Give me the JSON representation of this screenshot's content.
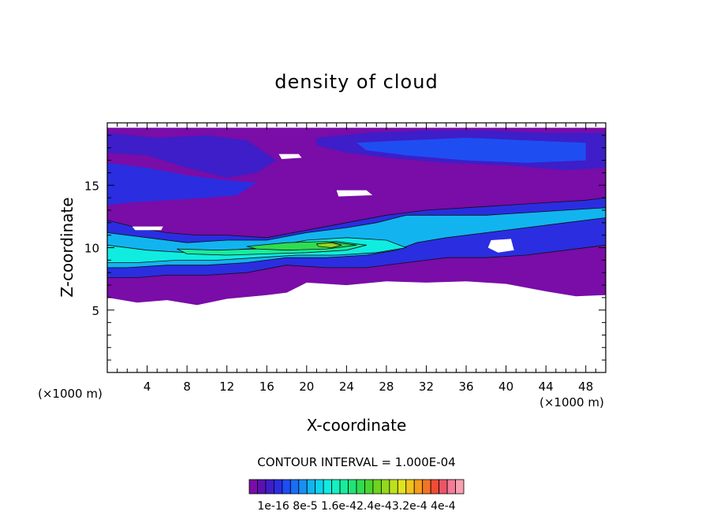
{
  "chart_data": {
    "type": "heatmap",
    "title": "density of cloud",
    "xlabel": "X-coordinate",
    "ylabel": "Z-coordinate",
    "x_unit_left": "(×1000 m)",
    "x_unit_right": "(×1000 m)",
    "xlim": [
      0,
      50
    ],
    "ylim": [
      0,
      20
    ],
    "x_ticks": [
      4,
      8,
      12,
      16,
      20,
      24,
      28,
      32,
      36,
      40,
      44,
      48
    ],
    "y_ticks": [
      5,
      10,
      15
    ],
    "contour_interval_text": "CONTOUR INTERVAL = 1.000E-04",
    "colorbar_labels": [
      "1e-16",
      "8e-5",
      "1.6e-4",
      "2.4e-4",
      "3.2e-4",
      "4e-4"
    ],
    "colorbar_label_text": "1e-16 8e-5 1.6e-42.4e-43.2e-4 4e-4",
    "value_range": [
      1e-16,
      0.0004
    ],
    "colormap": [
      "#7a0ca8",
      "#5a10b4",
      "#3d1ec8",
      "#2a2ee0",
      "#1e4ef2",
      "#1a6ef6",
      "#1790f4",
      "#12b4f0",
      "#0cd4ec",
      "#10ece0",
      "#14f0c0",
      "#18ec9c",
      "#20e478",
      "#30dc50",
      "#4ad430",
      "#6cd41c",
      "#94d81c",
      "#bce21c",
      "#e0e41c",
      "#f0c41c",
      "#f49c1c",
      "#f47424",
      "#f04c34",
      "#ec5468",
      "#f47c98",
      "#f8a0b0"
    ],
    "bands": [
      {
        "level": 0,
        "top": [
          [
            0,
            19.6
          ],
          [
            4,
            19.6
          ],
          [
            8,
            19.6
          ],
          [
            14,
            19.6
          ],
          [
            20,
            19.6
          ],
          [
            26,
            19.6
          ],
          [
            32,
            19.6
          ],
          [
            38,
            19.6
          ],
          [
            44,
            19.6
          ],
          [
            50,
            19.6
          ]
        ],
        "bottom": [
          [
            0,
            6
          ],
          [
            3,
            5.6
          ],
          [
            6,
            5.8
          ],
          [
            9,
            5.4
          ],
          [
            12,
            5.9
          ],
          [
            16,
            6.2
          ],
          [
            18,
            6.4
          ],
          [
            20,
            7.2
          ],
          [
            24,
            7
          ],
          [
            28,
            7.3
          ],
          [
            32,
            7.2
          ],
          [
            36,
            7.3
          ],
          [
            40,
            7.1
          ],
          [
            44,
            6.5
          ],
          [
            47,
            6.1
          ],
          [
            50,
            6.2
          ]
        ]
      },
      {
        "level": 2,
        "top": [
          [
            0,
            19.2
          ],
          [
            5,
            18.8
          ],
          [
            10,
            19
          ],
          [
            14,
            18.6
          ],
          [
            17,
            17
          ],
          [
            15,
            16
          ],
          [
            12,
            15.6
          ],
          [
            8,
            16.4
          ],
          [
            4,
            17.4
          ],
          [
            0,
            17.6
          ]
        ],
        "bottom": []
      },
      {
        "level": 3,
        "top": [
          [
            0,
            16.8
          ],
          [
            4,
            16.4
          ],
          [
            8,
            15.8
          ],
          [
            12,
            15.4
          ],
          [
            15,
            15.2
          ],
          [
            13,
            14.2
          ],
          [
            10,
            14
          ],
          [
            6,
            13.8
          ],
          [
            2,
            13.6
          ],
          [
            0,
            13.4
          ]
        ],
        "bottom": []
      },
      {
        "level": 2,
        "top": [
          [
            21,
            18.8
          ],
          [
            26,
            19.2
          ],
          [
            32,
            19.4
          ],
          [
            38,
            19.4
          ],
          [
            44,
            19.2
          ],
          [
            50,
            19.2
          ],
          [
            50,
            16.4
          ],
          [
            46,
            16.2
          ],
          [
            40,
            16.6
          ],
          [
            34,
            16.8
          ],
          [
            28,
            17.2
          ],
          [
            24,
            17.6
          ],
          [
            21,
            18.2
          ]
        ],
        "bottom": []
      },
      {
        "level": 4,
        "top": [
          [
            25,
            18.4
          ],
          [
            30,
            18.6
          ],
          [
            36,
            18.8
          ],
          [
            42,
            18.6
          ],
          [
            48,
            18.4
          ],
          [
            48,
            17
          ],
          [
            42,
            16.8
          ],
          [
            36,
            17
          ],
          [
            30,
            17.4
          ],
          [
            26,
            17.8
          ]
        ],
        "bottom": []
      },
      {
        "level": 3,
        "top": [
          [
            0,
            12.2
          ],
          [
            3,
            11.6
          ],
          [
            6,
            11.2
          ],
          [
            9,
            11
          ],
          [
            12,
            11
          ],
          [
            16,
            10.8
          ],
          [
            20,
            11.4
          ],
          [
            24,
            12
          ],
          [
            28,
            12.6
          ],
          [
            32,
            13
          ],
          [
            36,
            13.2
          ],
          [
            40,
            13.4
          ],
          [
            44,
            13.6
          ],
          [
            48,
            13.8
          ],
          [
            50,
            14
          ],
          [
            50,
            10.2
          ],
          [
            46,
            9.8
          ],
          [
            42,
            9.4
          ],
          [
            38,
            9.2
          ],
          [
            34,
            9.2
          ],
          [
            30,
            8.8
          ],
          [
            26,
            8.4
          ],
          [
            22,
            8.4
          ],
          [
            18,
            8.6
          ],
          [
            14,
            8
          ],
          [
            10,
            7.8
          ],
          [
            6,
            7.8
          ],
          [
            3,
            7.6
          ],
          [
            0,
            7.6
          ]
        ],
        "bottom": []
      },
      {
        "level": 7,
        "top": [
          [
            0,
            11.2
          ],
          [
            4,
            10.8
          ],
          [
            8,
            10.4
          ],
          [
            12,
            10.6
          ],
          [
            16,
            10.6
          ],
          [
            20,
            11.2
          ],
          [
            24,
            11.6
          ],
          [
            27,
            12
          ],
          [
            30,
            12.6
          ],
          [
            34,
            12.6
          ],
          [
            38,
            12.6
          ],
          [
            42,
            12.8
          ],
          [
            46,
            13
          ],
          [
            50,
            13.2
          ],
          [
            50,
            12.4
          ],
          [
            46,
            12
          ],
          [
            42,
            11.6
          ],
          [
            38,
            11.2
          ],
          [
            34,
            10.8
          ],
          [
            31,
            10.4
          ],
          [
            29,
            9.8
          ],
          [
            26,
            9.4
          ],
          [
            22,
            9.2
          ],
          [
            18,
            9.2
          ],
          [
            14,
            8.8
          ],
          [
            10,
            8.6
          ],
          [
            6,
            8.6
          ],
          [
            2,
            8.4
          ],
          [
            0,
            8.4
          ]
        ],
        "bottom": []
      },
      {
        "level": 9,
        "top": [
          [
            0,
            10.2
          ],
          [
            4,
            9.8
          ],
          [
            8,
            9.6
          ],
          [
            12,
            9.8
          ],
          [
            16,
            10
          ],
          [
            20,
            10.6
          ],
          [
            24,
            10.8
          ],
          [
            28,
            10.6
          ],
          [
            30,
            10
          ],
          [
            27,
            9.6
          ],
          [
            23,
            9.4
          ],
          [
            19,
            9.4
          ],
          [
            15,
            9.2
          ],
          [
            11,
            9
          ],
          [
            7,
            9
          ],
          [
            3,
            8.8
          ],
          [
            0,
            8.8
          ]
        ],
        "bottom": []
      },
      {
        "level": 11,
        "top": [
          [
            7,
            9.9
          ],
          [
            11,
            9.8
          ],
          [
            15,
            9.9
          ],
          [
            19,
            10.3
          ],
          [
            23,
            10.5
          ],
          [
            26,
            10.2
          ],
          [
            24,
            9.8
          ],
          [
            20,
            9.6
          ],
          [
            16,
            9.5
          ],
          [
            12,
            9.4
          ],
          [
            8,
            9.5
          ]
        ],
        "bottom": []
      },
      {
        "level": 13,
        "top": [
          [
            14,
            10.1
          ],
          [
            18,
            10.4
          ],
          [
            22,
            10.5
          ],
          [
            25,
            10.2
          ],
          [
            22,
            9.9
          ],
          [
            18,
            9.8
          ],
          [
            15,
            9.9
          ]
        ],
        "bottom": []
      },
      {
        "level": 16,
        "top": [
          [
            21,
            10.3
          ],
          [
            22.5,
            10.4
          ],
          [
            23.5,
            10.2
          ],
          [
            22.5,
            10.0
          ],
          [
            21.2,
            10.1
          ]
        ],
        "bottom": []
      }
    ],
    "gaps": [
      [
        [
          17.2,
          17.5
        ],
        [
          19.2,
          17.5
        ],
        [
          19.5,
          17.2
        ],
        [
          17.5,
          17.1
        ]
      ],
      [
        [
          23,
          14.6
        ],
        [
          26,
          14.6
        ],
        [
          26.6,
          14.2
        ],
        [
          23.2,
          14.1
        ]
      ],
      [
        [
          38.5,
          10.6
        ],
        [
          40.5,
          10.7
        ],
        [
          40.8,
          9.8
        ],
        [
          39.2,
          9.6
        ],
        [
          38.2,
          10
        ]
      ],
      [
        [
          2.5,
          11.7
        ],
        [
          5.6,
          11.7
        ],
        [
          5.4,
          11.4
        ],
        [
          2.8,
          11.4
        ]
      ]
    ]
  }
}
